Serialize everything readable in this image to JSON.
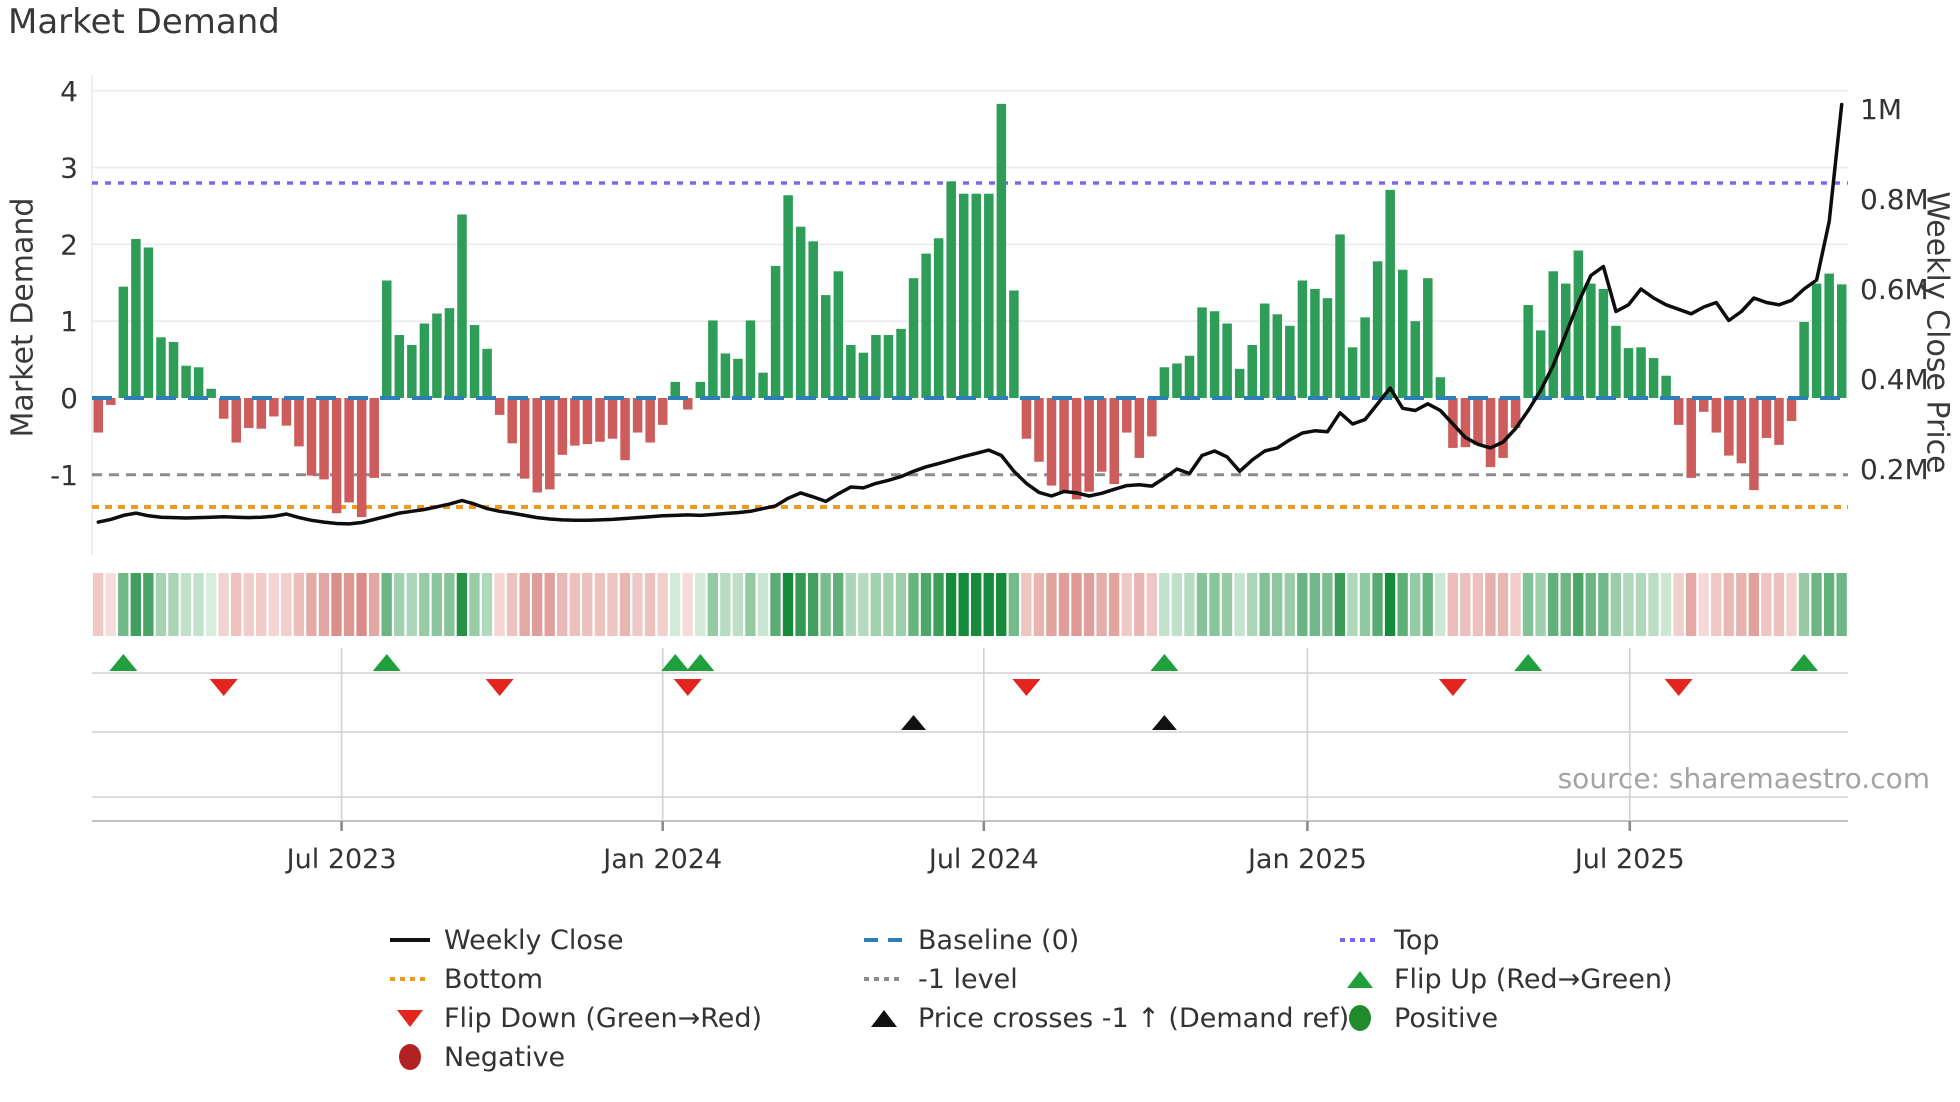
{
  "title": "Market Demand",
  "source": "source: sharemaestro.com",
  "axes": {
    "left_title": "Market Demand",
    "right_title": "Weekly Close Price",
    "left_ticks": [
      4,
      3,
      2,
      1,
      0,
      -1
    ],
    "right_ticks": [
      {
        "label": "1M",
        "value": 1.0
      },
      {
        "label": "0.8M",
        "value": 0.8
      },
      {
        "label": "0.6M",
        "value": 0.6
      },
      {
        "label": "0.4M",
        "value": 0.4
      },
      {
        "label": "0.2M",
        "value": 0.2
      }
    ],
    "x_ticks": [
      {
        "label": "Jul 2023",
        "week": 19.4
      },
      {
        "label": "Jan 2024",
        "week": 45.0
      },
      {
        "label": "Jul 2024",
        "week": 70.6
      },
      {
        "label": "Jan 2025",
        "week": 96.4
      },
      {
        "label": "Jul 2025",
        "week": 122.1
      }
    ]
  },
  "legend": {
    "items": [
      {
        "label": "Weekly Close",
        "swatch": "line",
        "color": "#111111"
      },
      {
        "label": "Baseline (0)",
        "swatch": "dashed",
        "color": "#2e7fb8"
      },
      {
        "label": "Top",
        "swatch": "dotted",
        "color": "#7b68ee"
      },
      {
        "label": "Bottom",
        "swatch": "dotted",
        "color": "#f0981e"
      },
      {
        "label": "-1 level",
        "swatch": "dotted",
        "color": "#8c8c8c"
      },
      {
        "label": "Flip Up (Red→Green)",
        "swatch": "tri-up",
        "color": "#1fa03c"
      },
      {
        "label": "Flip Down (Green→Red)",
        "swatch": "tri-down",
        "color": "#e2251f"
      },
      {
        "label": "Price crosses -1 ↑ (Demand ref)",
        "swatch": "tri-up",
        "color": "#111111"
      },
      {
        "label": "Positive",
        "swatch": "circle",
        "color": "#1f8b2c"
      },
      {
        "label": "Negative",
        "swatch": "circle",
        "color": "#b22222"
      }
    ]
  },
  "chart_data": {
    "type": "bar",
    "subtype": "combo-weekly-demand-bars-plus-price-line-heatstrip-and-event-markers",
    "title": "Market Demand",
    "xlabel": "",
    "ylabel_left": "Market Demand",
    "ylabel_right": "Weekly Close Price",
    "weeks": 140,
    "x_range_labels": [
      "Jul 2023",
      "Jan 2024",
      "Jul 2024",
      "Jan 2025",
      "Jul 2025"
    ],
    "ylim_demand": [
      -2.1,
      4.2
    ],
    "ylim_price_millions": [
      0,
      1.05
    ],
    "grid": "horizontal-light",
    "legend_position": "bottom-3-columns",
    "demand": [
      -0.45,
      -0.09,
      1.45,
      2.07,
      1.96,
      0.79,
      0.73,
      0.42,
      0.4,
      0.12,
      -0.27,
      -0.58,
      -0.39,
      -0.4,
      -0.24,
      -0.36,
      -0.63,
      -1.01,
      -1.06,
      -1.5,
      -1.36,
      -1.55,
      -1.04,
      1.53,
      0.82,
      0.69,
      0.97,
      1.1,
      1.17,
      2.39,
      0.95,
      0.64,
      -0.22,
      -0.59,
      -1.05,
      -1.23,
      -1.19,
      -0.74,
      -0.62,
      -0.6,
      -0.57,
      -0.53,
      -0.81,
      -0.45,
      -0.58,
      -0.35,
      0.21,
      -0.15,
      0.21,
      1.01,
      0.58,
      0.51,
      1.01,
      0.33,
      1.72,
      2.64,
      2.23,
      2.04,
      1.34,
      1.65,
      0.69,
      0.59,
      0.82,
      0.82,
      0.9,
      1.56,
      1.88,
      2.08,
      2.82,
      2.66,
      2.66,
      2.66,
      3.83,
      1.4,
      -0.53,
      -0.83,
      -1.14,
      -1.23,
      -1.32,
      -1.22,
      -0.96,
      -1.12,
      -0.45,
      -0.78,
      -0.5,
      0.4,
      0.45,
      0.55,
      1.18,
      1.13,
      0.97,
      0.38,
      0.69,
      1.23,
      1.09,
      0.94,
      1.53,
      1.42,
      1.3,
      2.13,
      0.66,
      1.05,
      1.78,
      2.71,
      1.67,
      1.0,
      1.56,
      0.27,
      -0.65,
      -0.64,
      -0.61,
      -0.9,
      -0.78,
      -0.39,
      1.21,
      0.88,
      1.65,
      1.49,
      1.92,
      1.49,
      1.42,
      0.94,
      0.65,
      0.66,
      0.52,
      0.29,
      -0.35,
      -1.04,
      -0.18,
      -0.45,
      -0.75,
      -0.85,
      -1.2,
      -0.52,
      -0.61,
      -0.3,
      0.99,
      1.49,
      1.62,
      1.48
    ],
    "price_weekly_close_millions": [
      0.082,
      0.088,
      0.097,
      0.102,
      0.096,
      0.093,
      0.092,
      0.091,
      0.092,
      0.093,
      0.094,
      0.093,
      0.092,
      0.093,
      0.095,
      0.1,
      0.092,
      0.086,
      0.082,
      0.079,
      0.078,
      0.081,
      0.088,
      0.095,
      0.102,
      0.106,
      0.11,
      0.116,
      0.122,
      0.13,
      0.122,
      0.112,
      0.106,
      0.102,
      0.097,
      0.092,
      0.089,
      0.087,
      0.086,
      0.086,
      0.087,
      0.088,
      0.09,
      0.092,
      0.094,
      0.096,
      0.097,
      0.098,
      0.097,
      0.099,
      0.101,
      0.103,
      0.106,
      0.112,
      0.118,
      0.135,
      0.147,
      0.138,
      0.128,
      0.145,
      0.16,
      0.158,
      0.168,
      0.175,
      0.183,
      0.195,
      0.205,
      0.212,
      0.22,
      0.228,
      0.235,
      0.242,
      0.23,
      0.195,
      0.168,
      0.148,
      0.14,
      0.15,
      0.147,
      0.14,
      0.146,
      0.155,
      0.163,
      0.165,
      0.162,
      0.18,
      0.2,
      0.19,
      0.23,
      0.24,
      0.227,
      0.195,
      0.22,
      0.24,
      0.247,
      0.265,
      0.28,
      0.285,
      0.283,
      0.325,
      0.3,
      0.31,
      0.345,
      0.38,
      0.335,
      0.33,
      0.345,
      0.33,
      0.3,
      0.27,
      0.255,
      0.247,
      0.26,
      0.29,
      0.33,
      0.375,
      0.43,
      0.5,
      0.57,
      0.63,
      0.65,
      0.55,
      0.565,
      0.6,
      0.58,
      0.565,
      0.555,
      0.545,
      0.56,
      0.57,
      0.53,
      0.55,
      0.58,
      0.57,
      0.565,
      0.575,
      0.6,
      0.62,
      0.75,
      1.01
    ],
    "ref_lines": {
      "baseline": 0,
      "top": 2.8,
      "minus1_level": -1,
      "bottom": -1.42
    },
    "markers": {
      "flip_up_weeks": [
        2,
        23,
        46,
        48,
        85,
        114,
        136
      ],
      "flip_down_weeks": [
        10,
        32,
        47,
        74,
        108,
        126
      ],
      "price_cross_minus1_weeks": [
        65,
        85
      ]
    },
    "colors": {
      "bar_positive": "#2e9d57",
      "bar_negative": "#cd5c5c",
      "price_line": "#0d0d0d",
      "baseline": "#2e7fb8",
      "top_line": "#7b68ee",
      "bottom_line": "#f0981e",
      "minus1_line": "#8c8c8c",
      "flip_up_marker": "#1fa03c",
      "flip_down_marker": "#e2251f",
      "price_cross_marker": "#111111",
      "heat_green_dark": "#158a3a",
      "heat_green_pale": "#e3f2e7",
      "heat_red_dark": "#c4524a",
      "heat_red_pale": "#f8e2e0",
      "grid": "#e9e9ee",
      "panel_line": "#d0d0d5",
      "tick_text": "#333333"
    }
  }
}
